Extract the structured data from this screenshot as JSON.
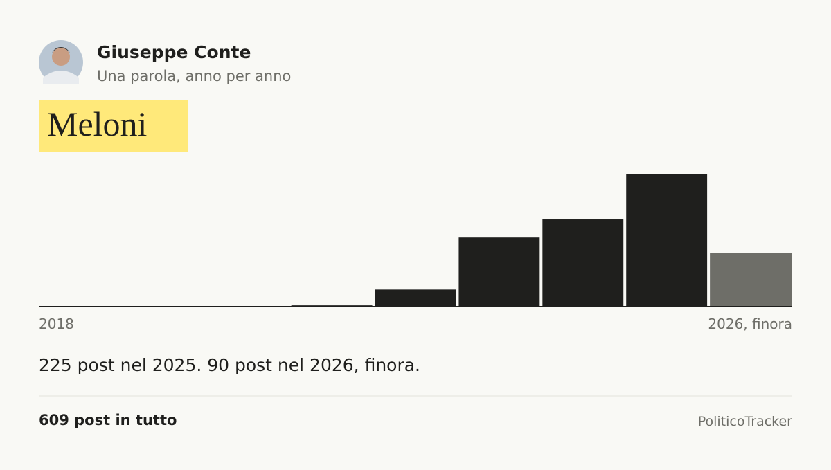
{
  "header": {
    "name": "Giuseppe Conte",
    "subtitle": "Una parola, anno per anno"
  },
  "word": "Meloni",
  "chart_data": {
    "type": "bar",
    "categories": [
      "2018",
      null,
      null,
      null,
      null,
      null,
      null,
      null,
      "2026, finora"
    ],
    "values": [
      0,
      0,
      0,
      1,
      28,
      117,
      148,
      225,
      90
    ],
    "colors": [
      "#1f1f1d",
      "#1f1f1d",
      "#1f1f1d",
      "#1f1f1d",
      "#1f1f1d",
      "#1f1f1d",
      "#1f1f1d",
      "#1f1f1d",
      "#6e6e68"
    ],
    "ylim": [
      0,
      225
    ]
  },
  "summary": "225 post nel 2025. 90 post nel 2026, finora.",
  "footer": {
    "total": "609 post in tutto",
    "brand": "PoliticoTracker"
  }
}
